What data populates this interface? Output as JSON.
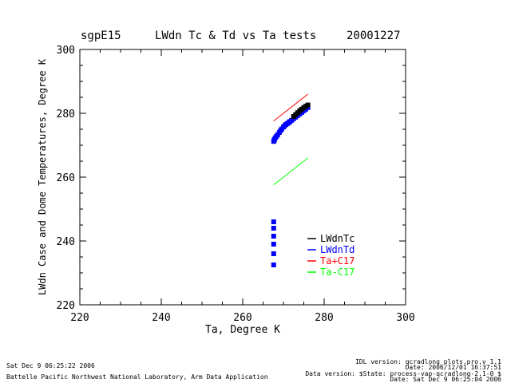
{
  "header": {
    "site": "sgpE15",
    "title": "LWdn Tc & Td vs Ta tests",
    "date": "20001227"
  },
  "footer": {
    "left_lines": [
      "Sat Dec  9 06:25:22 2006",
      "Battelle Pacific Northwest National Laboratory, Arm Data Application"
    ],
    "right_lines": [
      "IDL version: qcradlong_plots.pro,v 1.1",
      "Date: 2006/12/01 16:37:51",
      "Data version: $State: process-vap-qcradlong-2.1-0 $",
      "Date: Sat Dec  9 06:25:04 2006"
    ]
  },
  "chart_data": {
    "type": "scatter",
    "title": "LWdn Tc & Td vs Ta tests",
    "xlabel": "Ta, Degree K",
    "ylabel": "LWdn Case and Dome Temperatures, Degree K",
    "xlim": [
      220,
      300
    ],
    "ylim": [
      220,
      300
    ],
    "xticks": [
      220,
      240,
      260,
      280,
      300
    ],
    "yticks": [
      220,
      240,
      260,
      280,
      300
    ],
    "legend_position": "lower-right",
    "series": [
      {
        "name": "LWdnTc",
        "color": "#000000",
        "marker": "square",
        "x": [
          272.5,
          273.0,
          273.5,
          274.0,
          274.5,
          275.0,
          275.5,
          276.0
        ],
        "y": [
          279.0,
          279.6,
          280.2,
          280.8,
          281.3,
          281.8,
          282.2,
          282.6
        ]
      },
      {
        "name": "LWdnTd",
        "color": "#0000ff",
        "marker": "square",
        "x": [
          267.6,
          267.7,
          267.8,
          268.0,
          268.3,
          268.6,
          269.0,
          269.3,
          269.6,
          270.0,
          270.3,
          270.6,
          271.0,
          271.3,
          271.6,
          272.0,
          272.5,
          273.0,
          273.5,
          274.0,
          274.5,
          275.0,
          275.5,
          276.0,
          267.6,
          267.6,
          267.6,
          267.6,
          267.6,
          267.6
        ],
        "y": [
          271.2,
          271.5,
          271.8,
          272.3,
          272.8,
          273.3,
          274.0,
          274.6,
          275.1,
          275.7,
          276.1,
          276.5,
          276.8,
          277.1,
          277.4,
          277.8,
          278.3,
          278.8,
          279.3,
          279.8,
          280.3,
          280.8,
          281.3,
          281.8,
          246.0,
          244.0,
          241.5,
          239.0,
          236.0,
          232.5
        ]
      },
      {
        "name": "Ta+C17",
        "color": "#ff0000",
        "marker": "line",
        "x": [
          267.6,
          276.0
        ],
        "y": [
          277.6,
          286.0
        ]
      },
      {
        "name": "Ta-C17",
        "color": "#00ff00",
        "marker": "line",
        "x": [
          267.6,
          276.0
        ],
        "y": [
          257.6,
          266.0
        ]
      }
    ]
  }
}
